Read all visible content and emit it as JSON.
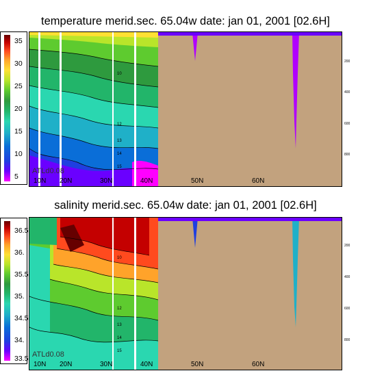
{
  "panels": [
    {
      "title": "temperature merid.sec. 65.04w   date: jan 01, 2001   [02.6H]",
      "colorbar_labels": [
        "35",
        "30",
        "25",
        "20",
        "15",
        "10",
        "5"
      ],
      "colors": [
        "#ff00ff",
        "#6a00ff",
        "#1f3fe0",
        "#0a6ed8",
        "#1fb0c8",
        "#2ad7b0",
        "#22b56a",
        "#2e9a3e",
        "#5ecb2f",
        "#b9e52a",
        "#ffe033",
        "#ffa32a",
        "#ff4a1e",
        "#c40000",
        "#660000"
      ],
      "x_ticks": [
        "10N",
        "20N",
        "30N",
        "40N",
        "50N",
        "60N"
      ],
      "depth_ticks": [
        "200",
        "400",
        "600",
        "800"
      ],
      "contour_labels": [
        "10",
        "12",
        "13",
        "14",
        "15"
      ],
      "stamp": "ATLd0.08"
    },
    {
      "title": "salinity merid.sec. 65.04w   date: jan 01, 2001   [02.6H]",
      "colorbar_labels": [
        "36.5",
        "36.",
        "35.5",
        "35.",
        "34.5",
        "34.",
        "33.5"
      ],
      "colors": [
        "#ff00ff",
        "#6a00ff",
        "#1f3fe0",
        "#0a6ed8",
        "#1fb0c8",
        "#2ad7b0",
        "#22b56a",
        "#2e9a3e",
        "#5ecb2f",
        "#b9e52a",
        "#ffe033",
        "#ffa32a",
        "#ff4a1e",
        "#c40000",
        "#660000"
      ],
      "x_ticks": [
        "10N",
        "20N",
        "30N",
        "40N",
        "50N",
        "60N"
      ],
      "depth_ticks": [
        "200",
        "400",
        "600",
        "800"
      ],
      "contour_labels": [
        "10",
        "12",
        "13",
        "14",
        "15"
      ],
      "stamp": "ATLd0.08"
    }
  ],
  "chart_data": [
    {
      "type": "heatmap",
      "title": "temperature merid.sec. 65.04w   date: jan 01, 2001   [02.6H]",
      "x_ticks": [
        "10N",
        "20N",
        "30N",
        "40N",
        "50N",
        "60N"
      ],
      "colorbar_range": [
        4,
        36
      ],
      "colorbar_ticks": [
        5,
        10,
        15,
        20,
        25,
        30,
        35
      ],
      "depth_ticks": [
        200,
        400,
        600,
        800
      ],
      "contour_labels": [
        10,
        12,
        13,
        14,
        15
      ],
      "land_color": "#c2a27e"
    },
    {
      "type": "heatmap",
      "title": "salinity merid.sec. 65.04w   date: jan 01, 2001   [02.6H]",
      "x_ticks": [
        "10N",
        "20N",
        "30N",
        "40N",
        "50N",
        "60N"
      ],
      "colorbar_range": [
        33.5,
        36.7
      ],
      "colorbar_ticks": [
        33.5,
        34.0,
        34.5,
        35.0,
        35.5,
        36.0,
        36.5
      ],
      "depth_ticks": [
        200,
        400,
        600,
        800
      ],
      "contour_labels": [
        10,
        12,
        13,
        14,
        15
      ],
      "land_color": "#c2a27e"
    }
  ]
}
